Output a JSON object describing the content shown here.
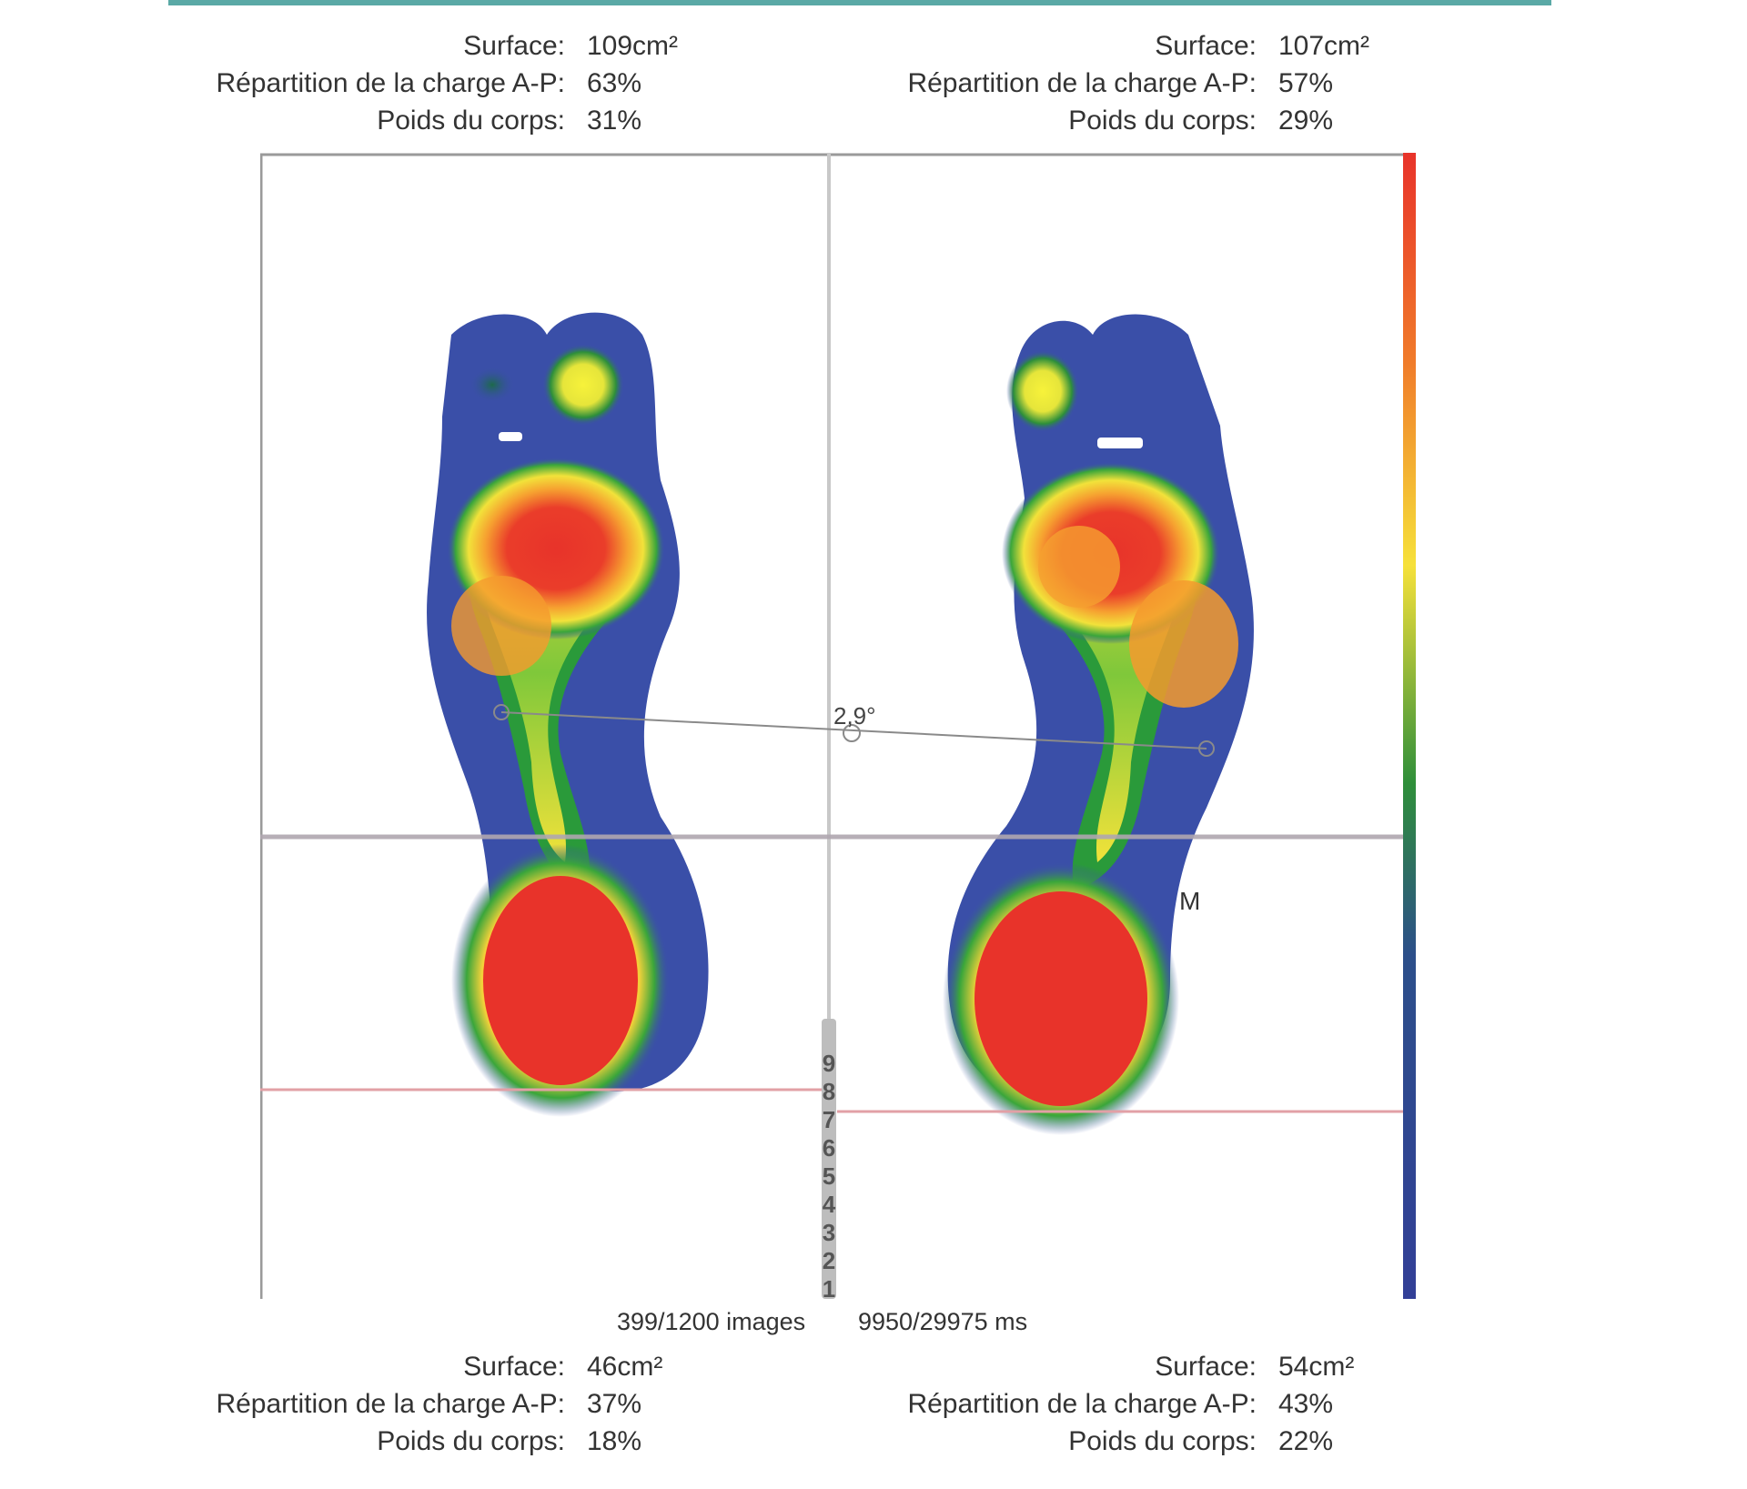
{
  "stats": {
    "top_left": [
      {
        "label": "Surface:",
        "value": "109cm²"
      },
      {
        "label": "Répartition de la charge A-P:",
        "value": "63%"
      },
      {
        "label": "Poids du corps:",
        "value": "31%"
      }
    ],
    "top_right": [
      {
        "label": "Surface:",
        "value": "107cm²"
      },
      {
        "label": "Répartition de la charge A-P:",
        "value": "57%"
      },
      {
        "label": "Poids du corps:",
        "value": "29%"
      }
    ],
    "bottom_left": [
      {
        "label": "Surface:",
        "value": "46cm²"
      },
      {
        "label": "Répartition de la charge A-P:",
        "value": "37%"
      },
      {
        "label": "Poids du corps:",
        "value": "18%"
      }
    ],
    "bottom_right": [
      {
        "label": "Surface:",
        "value": "54cm²"
      },
      {
        "label": "Répartition de la charge A-P:",
        "value": "43%"
      },
      {
        "label": "Poids du corps:",
        "value": "22%"
      }
    ]
  },
  "plot": {
    "angle_label": "2,9°",
    "marker_label": "M",
    "timeline_ticks": [
      "9",
      "8",
      "7",
      "6",
      "5",
      "4",
      "3",
      "2",
      "1"
    ]
  },
  "footer": {
    "images": "399/1200 images",
    "time": "9950/29975 ms"
  },
  "colors": {
    "accent_line": "#5aa9a6",
    "pressure_high": "#e8332a",
    "pressure_low": "#3a4fa8"
  }
}
